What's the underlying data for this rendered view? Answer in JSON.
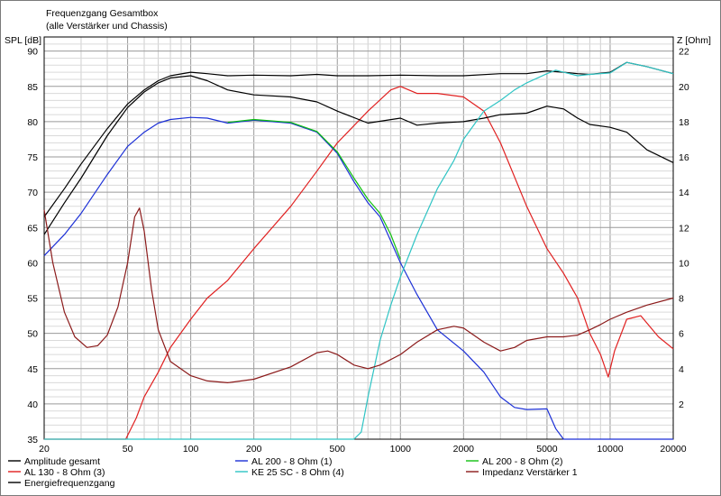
{
  "chart_data": {
    "type": "line",
    "title": "Frequenzgang Gesamtbox",
    "subtitle": "(alle Verstärker und Chassis)",
    "ylabel_left": "SPL [dB]",
    "ylabel_right": "Z [Ohm]",
    "xscale": "log",
    "xlim": [
      20,
      20000
    ],
    "ylim_left": [
      35,
      92
    ],
    "ylim_right": [
      0,
      22.8
    ],
    "grid": true,
    "xticks": [
      "20",
      "50",
      "100",
      "200",
      "500",
      "1000",
      "2000",
      "5000",
      "10000",
      "20000"
    ],
    "yticks_left": [
      "35",
      "40",
      "45",
      "50",
      "55",
      "60",
      "65",
      "70",
      "75",
      "80",
      "85",
      "90"
    ],
    "yticks_right": [
      "2",
      "4",
      "6",
      "8",
      "10",
      "12",
      "14",
      "16",
      "18",
      "20",
      "22"
    ],
    "legend_placement": "bottom",
    "series": [
      {
        "name": "Amplitude gesamt",
        "color": "#000000",
        "axis": "left",
        "x": [
          20,
          25,
          30,
          40,
          50,
          60,
          70,
          80,
          100,
          120,
          150,
          200,
          300,
          400,
          500,
          700,
          1000,
          1500,
          2000,
          3000,
          4000,
          5000,
          6000,
          7000,
          8000,
          10000,
          12000,
          15000,
          20000
        ],
        "y": [
          66.5,
          70.5,
          74,
          79,
          82.5,
          84.5,
          85.8,
          86.5,
          87,
          86.8,
          86.5,
          86.6,
          86.5,
          86.7,
          86.5,
          86.5,
          86.6,
          86.5,
          86.5,
          86.8,
          86.8,
          87.2,
          87,
          86.8,
          86.7,
          87,
          88.4,
          87.8,
          86.8
        ]
      },
      {
        "name": "AL 130 - 8 Ohm (3)",
        "color": "#e02020",
        "axis": "left",
        "x": [
          20,
          30,
          40,
          49,
          55,
          60,
          70,
          80,
          100,
          120,
          150,
          200,
          300,
          400,
          500,
          700,
          900,
          1000,
          1200,
          1500,
          2000,
          2500,
          3000,
          4000,
          5000,
          6000,
          7000,
          8000,
          9000,
          9800,
          10500,
          12000,
          14000,
          17000,
          20000
        ],
        "y": [
          35,
          35,
          35,
          35,
          38,
          41,
          44.5,
          48,
          52,
          55,
          57.5,
          62,
          68,
          73,
          77,
          81.5,
          84.5,
          85,
          84,
          84,
          83.5,
          81.5,
          77,
          68,
          62,
          58.5,
          55,
          50,
          47,
          43.8,
          47.5,
          52,
          52.5,
          49.5,
          47.8
        ]
      },
      {
        "name": "Energiefrequenzgang",
        "color": "#000000",
        "axis": "left",
        "x": [
          20,
          25,
          30,
          40,
          50,
          60,
          70,
          80,
          100,
          120,
          150,
          200,
          300,
          400,
          500,
          700,
          1000,
          1200,
          1500,
          2000,
          2500,
          3000,
          4000,
          5000,
          6000,
          7000,
          8000,
          10000,
          12000,
          15000,
          20000
        ],
        "y": [
          64,
          68.5,
          72,
          78,
          82,
          84.2,
          85.5,
          86.2,
          86.5,
          85.8,
          84.5,
          83.8,
          83.5,
          82.8,
          81.5,
          79.8,
          80.5,
          79.5,
          79.8,
          80,
          80.5,
          81,
          81.2,
          82.2,
          81.8,
          80.5,
          79.6,
          79.2,
          78.5,
          76,
          74.2
        ]
      },
      {
        "name": "AL 200 - 8 Ohm (1)",
        "color": "#1b2fd6",
        "axis": "left",
        "x": [
          20,
          25,
          30,
          40,
          50,
          60,
          70,
          80,
          100,
          120,
          150,
          200,
          300,
          400,
          500,
          600,
          700,
          800,
          1000,
          1200,
          1500,
          2000,
          2500,
          3000,
          3500,
          4000,
          5000,
          5500,
          6000,
          20000
        ],
        "y": [
          61,
          64,
          67,
          72.5,
          76.5,
          78.5,
          79.8,
          80.3,
          80.6,
          80.5,
          79.8,
          80.2,
          79.8,
          78.5,
          75.5,
          71.5,
          68.5,
          66.5,
          60,
          55.5,
          50.5,
          47.5,
          44.5,
          41,
          39.5,
          39.2,
          39.3,
          36.5,
          35,
          35
        ]
      },
      {
        "name": "KE 25 SC - 8 Ohm    (4)",
        "color": "#2ec4c4",
        "axis": "left",
        "x": [
          20,
          600,
          650,
          700,
          800,
          900,
          1000,
          1200,
          1500,
          1800,
          2000,
          2500,
          3000,
          3500,
          4000,
          5000,
          5500,
          6000,
          7000,
          8000,
          10000,
          12000,
          15000,
          20000
        ],
        "y": [
          35,
          35,
          36,
          41,
          49,
          54,
          58,
          64,
          70.5,
          74.5,
          77.5,
          81.5,
          83,
          84.5,
          85.5,
          86.8,
          87.3,
          87,
          86.5,
          86.7,
          86.9,
          88.4,
          87.8,
          86.8
        ]
      },
      {
        "name": "AL 200 - 8 Ohm (2)",
        "color": "#10c010",
        "axis": "left",
        "x": [
          150,
          200,
          300,
          400,
          500,
          600,
          700,
          800,
          900,
          1000
        ],
        "y": [
          79.9,
          80.3,
          79.9,
          78.6,
          75.7,
          72,
          69,
          67,
          64,
          60.5
        ]
      },
      {
        "name": "Impedanz Verstärker 1",
        "color": "#8b1a1a",
        "axis": "right",
        "x": [
          20,
          22,
          25,
          28,
          32,
          36,
          40,
          45,
          50,
          54,
          57,
          60,
          65,
          70,
          80,
          100,
          120,
          150,
          200,
          300,
          400,
          450,
          500,
          600,
          700,
          800,
          1000,
          1200,
          1500,
          1800,
          2000,
          2500,
          3000,
          3500,
          4000,
          5000,
          6000,
          7000,
          8000,
          9000,
          10000,
          12000,
          15000,
          20000
        ],
        "y": [
          13,
          10,
          7.2,
          5.8,
          5.2,
          5.3,
          5.9,
          7.5,
          10,
          12.6,
          13.1,
          11.8,
          8.5,
          6.2,
          4.4,
          3.6,
          3.3,
          3.2,
          3.4,
          4.1,
          4.9,
          5.0,
          4.8,
          4.2,
          4.0,
          4.2,
          4.8,
          5.5,
          6.2,
          6.4,
          6.3,
          5.5,
          5.0,
          5.2,
          5.6,
          5.8,
          5.8,
          5.9,
          6.2,
          6.5,
          6.8,
          7.2,
          7.6,
          8.0
        ]
      }
    ]
  },
  "legend": {
    "items": [
      {
        "label": "Amplitude gesamt",
        "color": "#000000"
      },
      {
        "label": "AL 200 - 8 Ohm (1)",
        "color": "#1b2fd6"
      },
      {
        "label": "AL 200 - 8 Ohm (2)",
        "color": "#10c010"
      },
      {
        "label": "AL 130 - 8 Ohm (3)",
        "color": "#e02020"
      },
      {
        "label": "KE 25 SC - 8 Ohm    (4)",
        "color": "#2ec4c4"
      },
      {
        "label": "Impedanz Verstärker 1",
        "color": "#8b1a1a"
      },
      {
        "label": "Energiefrequenzgang",
        "color": "#000000"
      }
    ]
  }
}
